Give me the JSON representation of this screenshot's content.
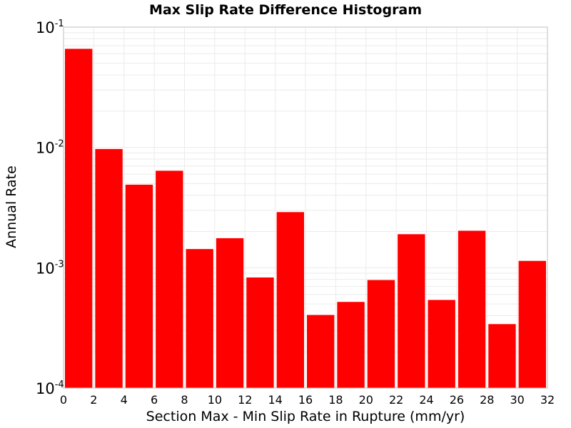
{
  "chart_data": {
    "type": "bar",
    "title": "Max Slip Rate Difference Histogram",
    "xlabel": "Section Max - Min Slip Rate in Rupture (mm/yr)",
    "ylabel": "Annual Rate",
    "bin_width": 2,
    "x": [
      1,
      3,
      5,
      7,
      9,
      11,
      13,
      15,
      17,
      19,
      21,
      23,
      25,
      27,
      29,
      31
    ],
    "values": [
      0.066,
      0.0097,
      0.0049,
      0.0064,
      0.00143,
      0.00176,
      0.00083,
      0.0029,
      0.000405,
      0.00052,
      0.00079,
      0.0019,
      0.00054,
      0.00203,
      0.00034,
      0.00114
    ],
    "xlim": [
      0,
      32
    ],
    "ylim": [
      0.0001,
      0.1
    ],
    "yscale": "log",
    "xticks": [
      "0",
      "2",
      "4",
      "6",
      "8",
      "10",
      "12",
      "14",
      "16",
      "18",
      "20",
      "22",
      "24",
      "26",
      "28",
      "30",
      "32"
    ],
    "yticks": [
      {
        "base": "10",
        "exp": "-4"
      },
      {
        "base": "10",
        "exp": "-3"
      },
      {
        "base": "10",
        "exp": "-2"
      },
      {
        "base": "10",
        "exp": "-1"
      }
    ],
    "grid": true,
    "legend": "none",
    "colors": {
      "bar": "#ff0000",
      "grid": "#ebebeb",
      "frame": "#bfbfbf"
    }
  }
}
